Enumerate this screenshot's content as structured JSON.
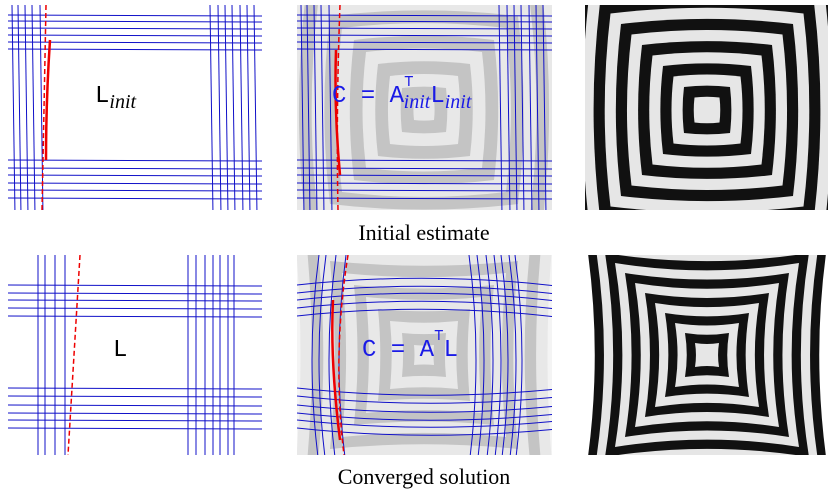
{
  "rows": [
    {
      "label": {
        "main": "L",
        "sub": "init"
      },
      "equation": {
        "lhs": "C = A",
        "sup": "⊤",
        "sub": "init",
        "rhs": "L",
        "rhs_sub": "init"
      },
      "caption": "Initial estimate"
    },
    {
      "label": {
        "main": "L"
      },
      "equation": {
        "lhs": "C = A",
        "sup": "⊤",
        "rhs": "L"
      },
      "caption": "Converged solution"
    }
  ]
}
